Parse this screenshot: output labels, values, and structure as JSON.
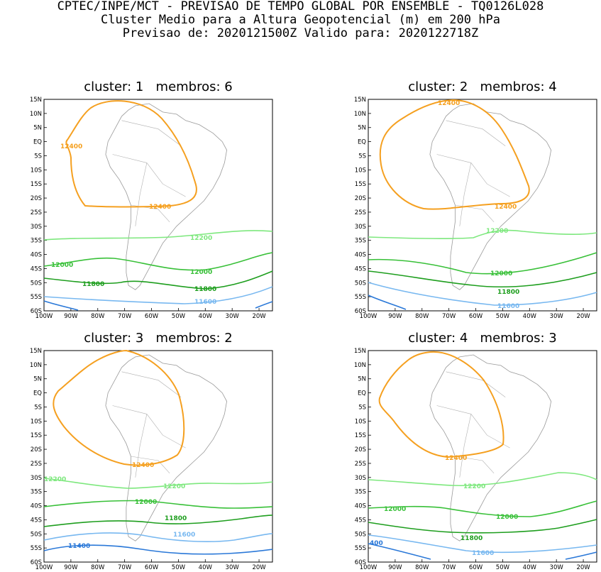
{
  "header": {
    "line1": "CPTEC/INPE/MCT - PREVISAO DE TEMPO GLOBAL POR ENSEMBLE - TQ0126L028",
    "line2": "Cluster Medio para a Altura Geopotencial (m) em 200 hPa",
    "line3": "Previsao de: 2020121500Z   Valido para: 2020122718Z"
  },
  "axes": {
    "lat_labels": [
      "15N",
      "10N",
      "5N",
      "EQ",
      "5S",
      "10S",
      "15S",
      "20S",
      "25S",
      "30S",
      "35S",
      "40S",
      "45S",
      "50S",
      "55S",
      "60S"
    ],
    "lon_labels": [
      "100W",
      "90W",
      "80W",
      "70W",
      "60W",
      "50W",
      "40W",
      "30W",
      "20W"
    ]
  },
  "colors": {
    "c12400": "#f5a020",
    "c12200": "#7ee87e",
    "c12000": "#38c038",
    "c11800": "#1e9e1e",
    "c11600": "#78b8f0",
    "c11400": "#2a78d8",
    "coast": "#999999"
  },
  "panels": [
    {
      "title": "cluster: 1   membros: 6",
      "labels": {
        "a": "12400",
        "b": "12400",
        "c": "12200",
        "d": "12000",
        "e": "12000",
        "f": "11800",
        "g": "11800",
        "h": "11600"
      }
    },
    {
      "title": "cluster: 2   membros: 4",
      "labels": {
        "a": "12400",
        "b": "12400",
        "c": "12200",
        "d": "12000",
        "e": "11800",
        "f": "11600"
      }
    },
    {
      "title": "cluster: 3   membros: 2",
      "labels": {
        "a": "12400",
        "b": "12200",
        "c": "12200",
        "d": "12000",
        "e": "11800",
        "f": "11600",
        "g": "11400"
      }
    },
    {
      "title": "cluster: 4   membros: 3",
      "labels": {
        "a": "12400",
        "b": "12200",
        "c": "12000",
        "d": "12000",
        "e": "11800",
        "f": "11600",
        "g": "400"
      }
    }
  ]
}
